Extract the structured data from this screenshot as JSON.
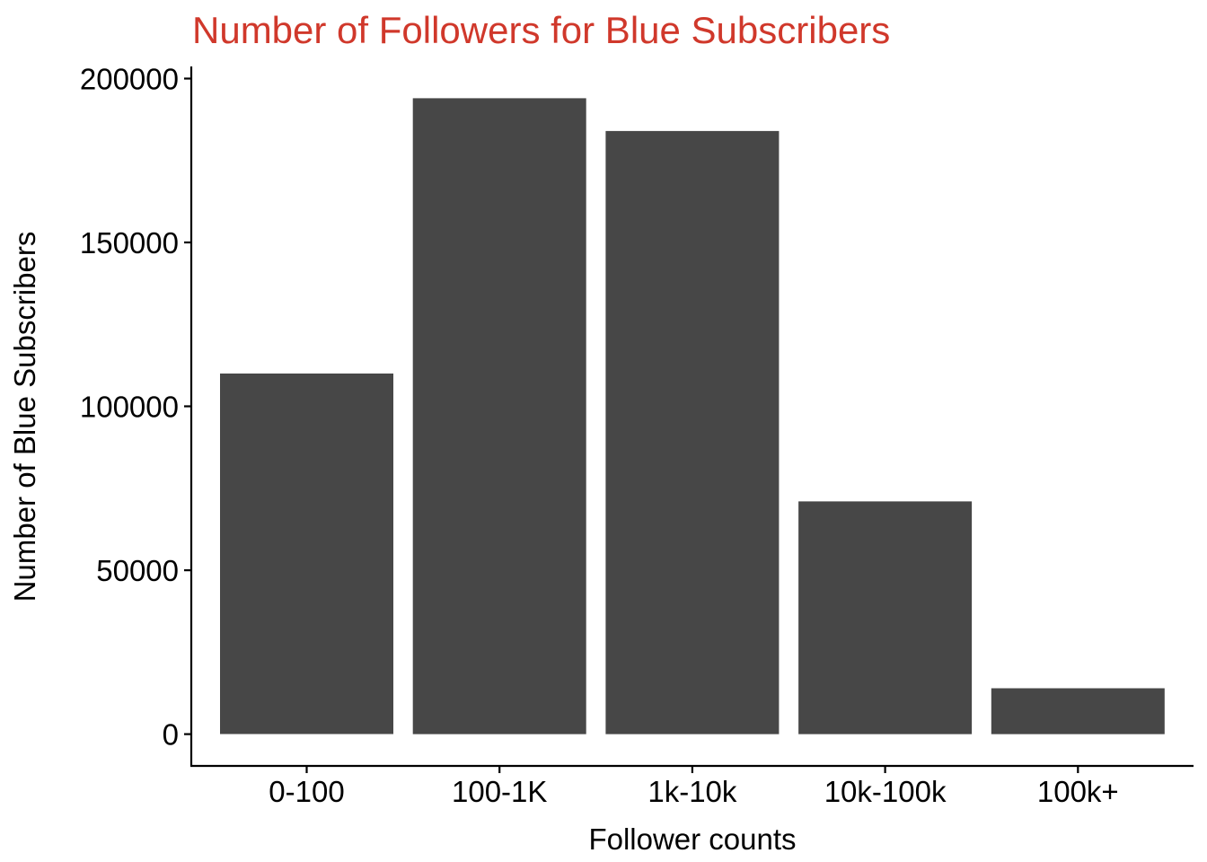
{
  "chart_data": {
    "type": "bar",
    "title": "Number of Followers for Blue Subscribers",
    "xlabel": "Follower counts",
    "ylabel": "Number of Blue Subscribers",
    "categories": [
      "0-100",
      "100-1K",
      "1k-10k",
      "10k-100k",
      "100k+"
    ],
    "values": [
      110000,
      194000,
      184000,
      71000,
      14000
    ],
    "yticks": [
      0,
      50000,
      100000,
      150000,
      200000
    ],
    "ytick_labels": [
      "0",
      "50000",
      "100000",
      "150000",
      "200000"
    ],
    "ylim": [
      -9700,
      203700
    ],
    "grid": false,
    "legend": "none",
    "colors": {
      "bar": "#474747",
      "title": "#d0382b",
      "axis": "#000000"
    }
  }
}
